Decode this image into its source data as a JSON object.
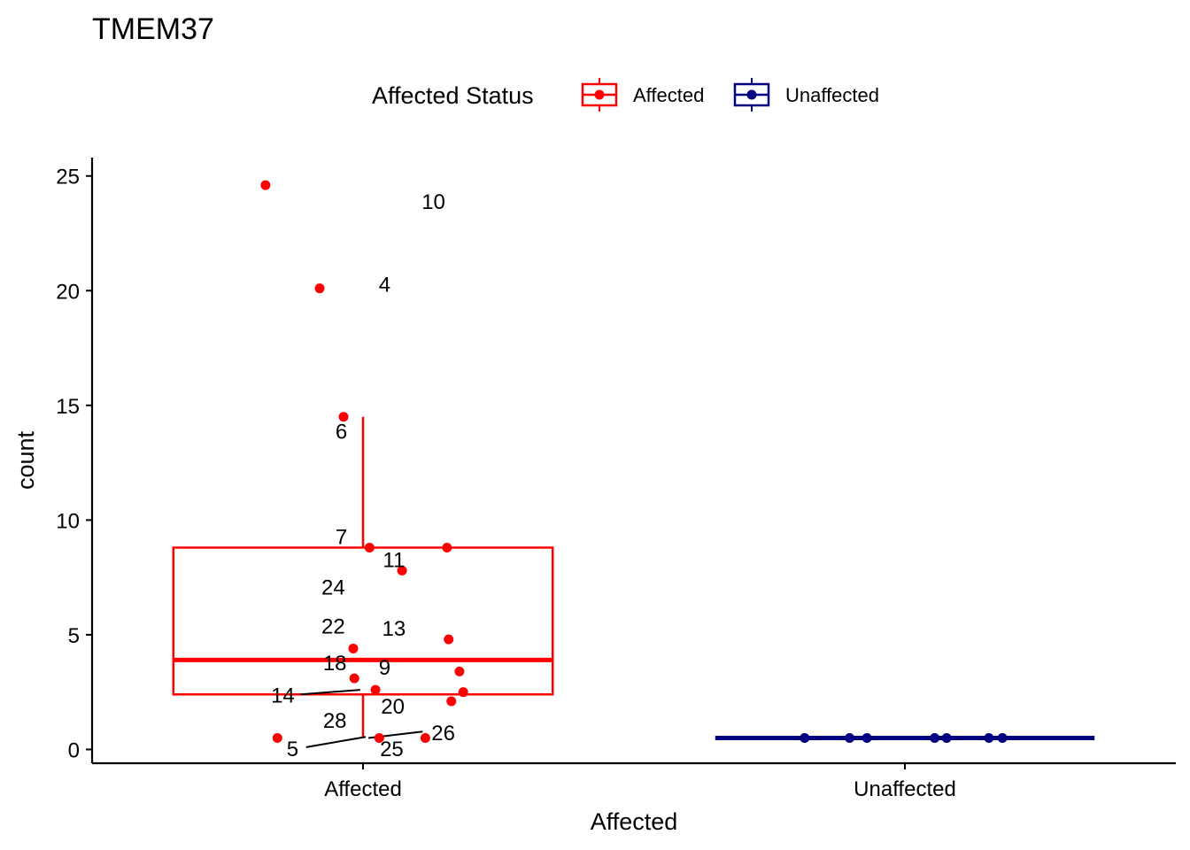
{
  "chart_data": {
    "type": "box",
    "title": "TMEM37",
    "xlabel": "Affected",
    "ylabel": "count",
    "ylim": [
      -0.6,
      25.8
    ],
    "y_ticks": [
      0,
      5,
      10,
      15,
      20,
      25
    ],
    "categories": [
      "Affected",
      "Unaffected"
    ],
    "legend": {
      "title": "Affected Status",
      "placement": "top",
      "entries": [
        {
          "label": "Affected",
          "color": "#ff0000"
        },
        {
          "label": "Unaffected",
          "color": "#000080"
        }
      ]
    },
    "boxes": [
      {
        "group": "Affected",
        "color": "#ff0000",
        "q1": 2.4,
        "median": 3.9,
        "q3": 8.8,
        "whisker_low": 0.5,
        "whisker_high": 14.5
      },
      {
        "group": "Unaffected",
        "color": "#000080",
        "q1": 0.5,
        "median": 0.5,
        "q3": 0.5,
        "whisker_low": 0.5,
        "whisker_high": 0.5
      }
    ],
    "points": [
      {
        "group": "Affected",
        "jitter": -0.18,
        "y": 24.6,
        "label": "10",
        "lx": 0.13,
        "ly": 23.9
      },
      {
        "group": "Affected",
        "jitter": -0.08,
        "y": 20.1,
        "label": "4",
        "lx": 0.04,
        "ly": 20.3
      },
      {
        "group": "Affected",
        "jitter": -0.036,
        "y": 14.5,
        "label": "6",
        "lx": -0.04,
        "ly": 13.9
      },
      {
        "group": "Affected",
        "jitter": 0.012,
        "y": 8.8,
        "label": "7",
        "lx": -0.04,
        "ly": 9.3
      },
      {
        "group": "Affected",
        "jitter": 0.155,
        "y": 8.8,
        "label": "24",
        "lx": -0.055,
        "ly": 7.1
      },
      {
        "group": "Affected",
        "jitter": 0.072,
        "y": 7.8,
        "label": "11",
        "lx": 0.057,
        "ly": 8.3
      },
      {
        "group": "Affected",
        "jitter": 0.158,
        "y": 4.8,
        "label": "13",
        "lx": 0.057,
        "ly": 5.3
      },
      {
        "group": "Affected",
        "jitter": -0.018,
        "y": 4.4,
        "label": "22",
        "lx": -0.055,
        "ly": 5.4
      },
      {
        "group": "Affected",
        "jitter": 0.178,
        "y": 3.4,
        "label": "9",
        "lx": 0.04,
        "ly": 3.6
      },
      {
        "group": "Affected",
        "jitter": -0.016,
        "y": 3.1,
        "label": "18",
        "lx": -0.052,
        "ly": 3.8
      },
      {
        "group": "Affected",
        "jitter": 0.023,
        "y": 2.6,
        "label": "14",
        "lx": -0.148,
        "ly": 2.4
      },
      {
        "group": "Affected",
        "jitter": 0.185,
        "y": 2.5,
        "label": "28",
        "lx": -0.052,
        "ly": 1.3
      },
      {
        "group": "Affected",
        "jitter": 0.163,
        "y": 2.1,
        "label": "20",
        "lx": 0.055,
        "ly": 1.9
      },
      {
        "group": "Affected",
        "jitter": -0.158,
        "y": 0.5,
        "label": "5",
        "lx": -0.13,
        "ly": 0.05
      },
      {
        "group": "Affected",
        "jitter": 0.03,
        "y": 0.5,
        "label": "25",
        "lx": 0.053,
        "ly": 0.05
      },
      {
        "group": "Affected",
        "jitter": 0.115,
        "y": 0.5,
        "label": "26",
        "lx": 0.148,
        "ly": 0.75
      },
      {
        "group": "Unaffected",
        "jitter": -0.185,
        "y": 0.5
      },
      {
        "group": "Unaffected",
        "jitter": -0.102,
        "y": 0.5
      },
      {
        "group": "Unaffected",
        "jitter": -0.07,
        "y": 0.5
      },
      {
        "group": "Unaffected",
        "jitter": 0.055,
        "y": 0.5
      },
      {
        "group": "Unaffected",
        "jitter": 0.077,
        "y": 0.5
      },
      {
        "group": "Unaffected",
        "jitter": 0.155,
        "y": 0.5
      },
      {
        "group": "Unaffected",
        "jitter": 0.18,
        "y": 0.5
      }
    ],
    "leader_lines": [
      {
        "x1": -0.115,
        "y1": 2.4,
        "x2": -0.005,
        "y2": 2.6
      },
      {
        "x1": -0.105,
        "y1": 0.1,
        "x2": 0.005,
        "y2": 0.55
      },
      {
        "x1": 0.01,
        "y1": 0.5,
        "x2": 0.11,
        "y2": 0.78
      }
    ],
    "grid": false
  }
}
